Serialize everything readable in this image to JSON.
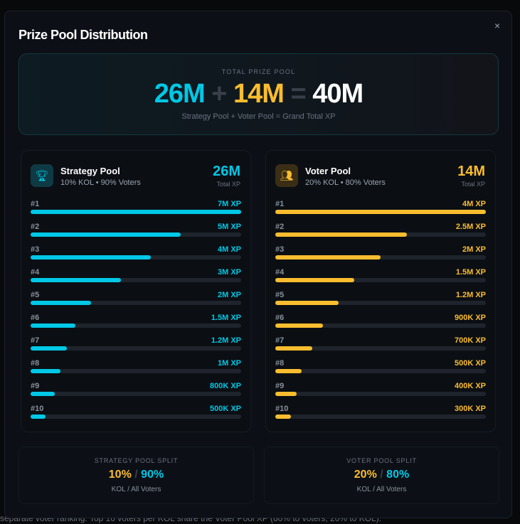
{
  "background_text": "separate voter ranking. Top 10 voters per KOL share the Voter Pool XP (80% to voters, 20% to KOL).",
  "modal": {
    "title": "Prize Pool Distribution",
    "close": "×"
  },
  "hero": {
    "label": "TOTAL PRIZE POOL",
    "strategy": "26M",
    "plus": "+",
    "voter": "14M",
    "equals": "=",
    "total": "40M",
    "subtitle": "Strategy Pool + Voter Pool = Grand Total XP"
  },
  "colors": {
    "cyan": "#00c8e6",
    "amber": "#fbbd2e"
  },
  "strategy": {
    "icon": "trophy-icon",
    "name": "Strategy Pool",
    "desc": "10% KOL • 90% Voters",
    "total": "26M",
    "total_label": "Total XP",
    "rows": [
      {
        "rank": "#1",
        "label": "7M XP",
        "value": 7000000
      },
      {
        "rank": "#2",
        "label": "5M XP",
        "value": 5000000
      },
      {
        "rank": "#3",
        "label": "4M XP",
        "value": 4000000
      },
      {
        "rank": "#4",
        "label": "3M XP",
        "value": 3000000
      },
      {
        "rank": "#5",
        "label": "2M XP",
        "value": 2000000
      },
      {
        "rank": "#6",
        "label": "1.5M XP",
        "value": 1500000
      },
      {
        "rank": "#7",
        "label": "1.2M XP",
        "value": 1200000
      },
      {
        "rank": "#8",
        "label": "1M XP",
        "value": 1000000
      },
      {
        "rank": "#9",
        "label": "800K XP",
        "value": 800000
      },
      {
        "rank": "#10",
        "label": "500K XP",
        "value": 500000
      }
    ]
  },
  "voter": {
    "icon": "users-icon",
    "name": "Voter Pool",
    "desc": "20% KOL • 80% Voters",
    "total": "14M",
    "total_label": "Total XP",
    "rows": [
      {
        "rank": "#1",
        "label": "4M XP",
        "value": 4000000
      },
      {
        "rank": "#2",
        "label": "2.5M XP",
        "value": 2500000
      },
      {
        "rank": "#3",
        "label": "2M XP",
        "value": 2000000
      },
      {
        "rank": "#4",
        "label": "1.5M XP",
        "value": 1500000
      },
      {
        "rank": "#5",
        "label": "1.2M XP",
        "value": 1200000
      },
      {
        "rank": "#6",
        "label": "900K XP",
        "value": 900000
      },
      {
        "rank": "#7",
        "label": "700K XP",
        "value": 700000
      },
      {
        "rank": "#8",
        "label": "500K XP",
        "value": 500000
      },
      {
        "rank": "#9",
        "label": "400K XP",
        "value": 400000
      },
      {
        "rank": "#10",
        "label": "300K XP",
        "value": 300000
      }
    ]
  },
  "splits": [
    {
      "label": "STRATEGY POOL SPLIT",
      "kol": "10%",
      "sep": "/",
      "voters": "90%",
      "sub": "KOL / All Voters"
    },
    {
      "label": "VOTER POOL SPLIT",
      "kol": "20%",
      "sep": "/",
      "voters": "80%",
      "sub": "KOL / All Voters"
    }
  ]
}
